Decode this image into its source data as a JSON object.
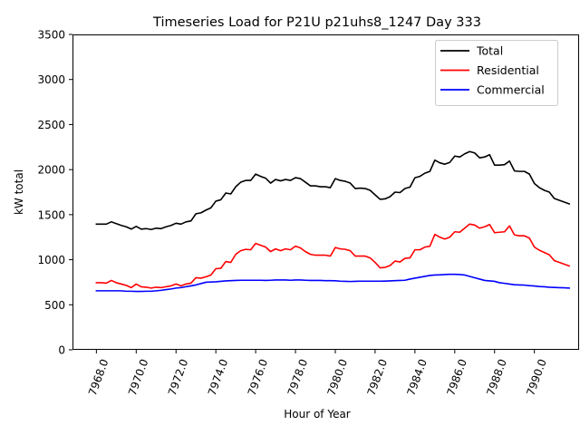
{
  "chart_data": {
    "type": "line",
    "title": "Timeseries Load for P21U p21uhs8_1247  Day 333",
    "xlabel": "Hour of Year",
    "ylabel": "kW total",
    "xlim": [
      7966.8,
      7992.2
    ],
    "ylim": [
      0,
      3500
    ],
    "x_ticks": [
      {
        "value": 7968,
        "label": "7968.0"
      },
      {
        "value": 7970,
        "label": "7970.0"
      },
      {
        "value": 7972,
        "label": "7972.0"
      },
      {
        "value": 7974,
        "label": "7974.0"
      },
      {
        "value": 7976,
        "label": "7976.0"
      },
      {
        "value": 7978,
        "label": "7978.0"
      },
      {
        "value": 7980,
        "label": "7980.0"
      },
      {
        "value": 7982,
        "label": "7982.0"
      },
      {
        "value": 7984,
        "label": "7984.0"
      },
      {
        "value": 7986,
        "label": "7986.0"
      },
      {
        "value": 7988,
        "label": "7988.0"
      },
      {
        "value": 7990,
        "label": "7990.0"
      }
    ],
    "y_ticks": [
      {
        "value": 0,
        "label": "0"
      },
      {
        "value": 500,
        "label": "500"
      },
      {
        "value": 1000,
        "label": "1000"
      },
      {
        "value": 1500,
        "label": "1500"
      },
      {
        "value": 2000,
        "label": "2000"
      },
      {
        "value": 2500,
        "label": "2500"
      },
      {
        "value": 3000,
        "label": "3000"
      },
      {
        "value": 3500,
        "label": "3500"
      }
    ],
    "grid": false,
    "legend_position": "top-right",
    "x_start": 7968,
    "x_step": 0.25,
    "series": [
      {
        "name": "Total",
        "color": "#000000",
        "values": [
          1395,
          1395,
          1395,
          1420,
          1400,
          1380,
          1365,
          1340,
          1370,
          1340,
          1345,
          1335,
          1350,
          1345,
          1365,
          1380,
          1405,
          1395,
          1420,
          1430,
          1510,
          1520,
          1550,
          1575,
          1650,
          1665,
          1740,
          1730,
          1810,
          1860,
          1880,
          1880,
          1950,
          1925,
          1905,
          1850,
          1890,
          1875,
          1890,
          1880,
          1910,
          1900,
          1860,
          1820,
          1820,
          1810,
          1810,
          1800,
          1900,
          1880,
          1870,
          1850,
          1790,
          1795,
          1790,
          1770,
          1720,
          1670,
          1675,
          1700,
          1750,
          1745,
          1790,
          1805,
          1910,
          1925,
          1960,
          1980,
          2105,
          2075,
          2060,
          2080,
          2150,
          2140,
          2175,
          2200,
          2185,
          2130,
          2140,
          2165,
          2050,
          2050,
          2055,
          2095,
          1985,
          1980,
          1980,
          1950,
          1845,
          1800,
          1770,
          1750,
          1680,
          1660,
          1640,
          1620
        ]
      },
      {
        "name": "Residential",
        "color": "#ff0000",
        "values": [
          745,
          745,
          740,
          770,
          745,
          730,
          715,
          690,
          730,
          700,
          695,
          685,
          695,
          690,
          700,
          710,
          730,
          710,
          730,
          740,
          800,
          795,
          810,
          830,
          900,
          905,
          980,
          970,
          1060,
          1100,
          1115,
          1110,
          1180,
          1160,
          1140,
          1090,
          1120,
          1100,
          1120,
          1110,
          1150,
          1130,
          1090,
          1060,
          1050,
          1050,
          1050,
          1040,
          1135,
          1120,
          1115,
          1100,
          1040,
          1040,
          1040,
          1020,
          970,
          910,
          915,
          935,
          985,
          975,
          1015,
          1020,
          1110,
          1110,
          1140,
          1150,
          1280,
          1250,
          1230,
          1250,
          1310,
          1305,
          1350,
          1395,
          1385,
          1350,
          1365,
          1390,
          1300,
          1305,
          1310,
          1375,
          1275,
          1265,
          1265,
          1240,
          1140,
          1105,
          1080,
          1055,
          990,
          970,
          950,
          930
        ]
      },
      {
        "name": "Commercial",
        "color": "#0000ff",
        "values": [
          655,
          655,
          655,
          655,
          655,
          655,
          650,
          650,
          648,
          648,
          650,
          650,
          655,
          660,
          668,
          675,
          685,
          690,
          700,
          710,
          720,
          735,
          750,
          752,
          755,
          760,
          765,
          768,
          770,
          772,
          772,
          772,
          772,
          772,
          770,
          772,
          775,
          775,
          775,
          772,
          775,
          775,
          772,
          770,
          770,
          770,
          768,
          768,
          766,
          762,
          760,
          758,
          760,
          762,
          762,
          762,
          762,
          762,
          763,
          765,
          768,
          770,
          772,
          785,
          795,
          805,
          815,
          825,
          830,
          832,
          835,
          838,
          838,
          835,
          830,
          815,
          800,
          785,
          770,
          765,
          760,
          745,
          738,
          730,
          722,
          720,
          718,
          712,
          708,
          702,
          700,
          695,
          692,
          690,
          688,
          685
        ]
      }
    ]
  }
}
